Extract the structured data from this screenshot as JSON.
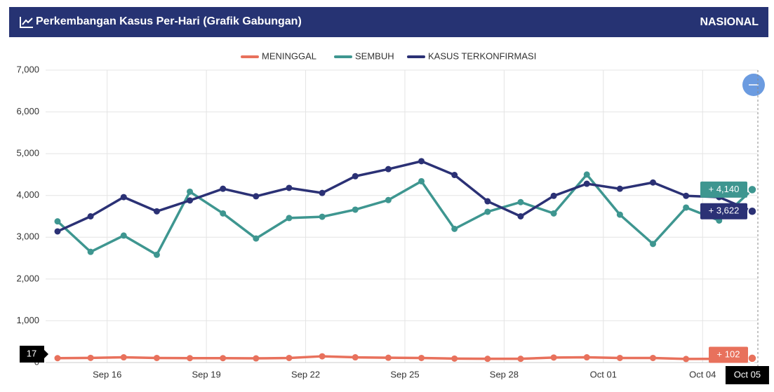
{
  "header": {
    "title": "Perkembangan Kasus Per-Hari (Grafik Gabungan)",
    "scope": "NASIONAL"
  },
  "chart_data": {
    "type": "line",
    "categories": [
      null,
      null,
      "Sep 16",
      null,
      null,
      "Sep 19",
      null,
      null,
      "Sep 22",
      null,
      null,
      "Sep 25",
      null,
      null,
      "Sep 28",
      null,
      null,
      "Oct 01",
      null,
      null,
      "Oct 04",
      "Oct 05"
    ],
    "series": [
      {
        "name": "MENINGGAL",
        "color": "#e8715c",
        "values": [
          105,
          112,
          125,
          110,
          105,
          105,
          100,
          110,
          150,
          125,
          115,
          110,
          95,
          90,
          90,
          120,
          125,
          110,
          110,
          85,
          90,
          102
        ],
        "value_labels": [
          null,
          null,
          null,
          null,
          null,
          null,
          null,
          null,
          null,
          null,
          null,
          null,
          null,
          null,
          null,
          null,
          null,
          null,
          null,
          null,
          null,
          "+ 102"
        ]
      },
      {
        "name": "SEMBUH",
        "color": "#3e9690",
        "values": [
          3380,
          2650,
          3040,
          2580,
          4090,
          3570,
          2970,
          3460,
          3490,
          3660,
          3890,
          4340,
          3200,
          3610,
          3840,
          3570,
          4500,
          3540,
          2840,
          3710,
          3400,
          4140
        ],
        "value_labels": [
          null,
          null,
          null,
          null,
          null,
          null,
          null,
          null,
          null,
          null,
          null,
          null,
          null,
          null,
          null,
          null,
          null,
          null,
          null,
          null,
          null,
          "+ 4,140"
        ]
      },
      {
        "name": "KASUS TERKONFIRMASI",
        "color": "#2b3175",
        "values": [
          3140,
          3500,
          3960,
          3620,
          3880,
          4160,
          3980,
          4180,
          4060,
          4460,
          4630,
          4820,
          4490,
          3860,
          3500,
          3990,
          4280,
          4160,
          4310,
          3990,
          3960,
          3622
        ],
        "value_labels": [
          null,
          null,
          null,
          null,
          null,
          null,
          null,
          null,
          null,
          null,
          null,
          null,
          null,
          null,
          null,
          null,
          null,
          null,
          null,
          null,
          null,
          "+ 3,622"
        ]
      }
    ],
    "ylim": [
      0,
      7000
    ],
    "yticks": [
      0,
      {
        "value": 1000,
        "label": "1,000"
      },
      {
        "value": 2000,
        "label": "2,000"
      },
      {
        "value": 3000,
        "label": "3,000"
      },
      {
        "value": 4000,
        "label": "4,000"
      },
      {
        "value": 5000,
        "label": "5,000"
      },
      {
        "value": 6000,
        "label": "6,000"
      },
      {
        "value": 7000,
        "label": "7,000"
      }
    ],
    "grid": true,
    "crosshair_label": "17"
  }
}
